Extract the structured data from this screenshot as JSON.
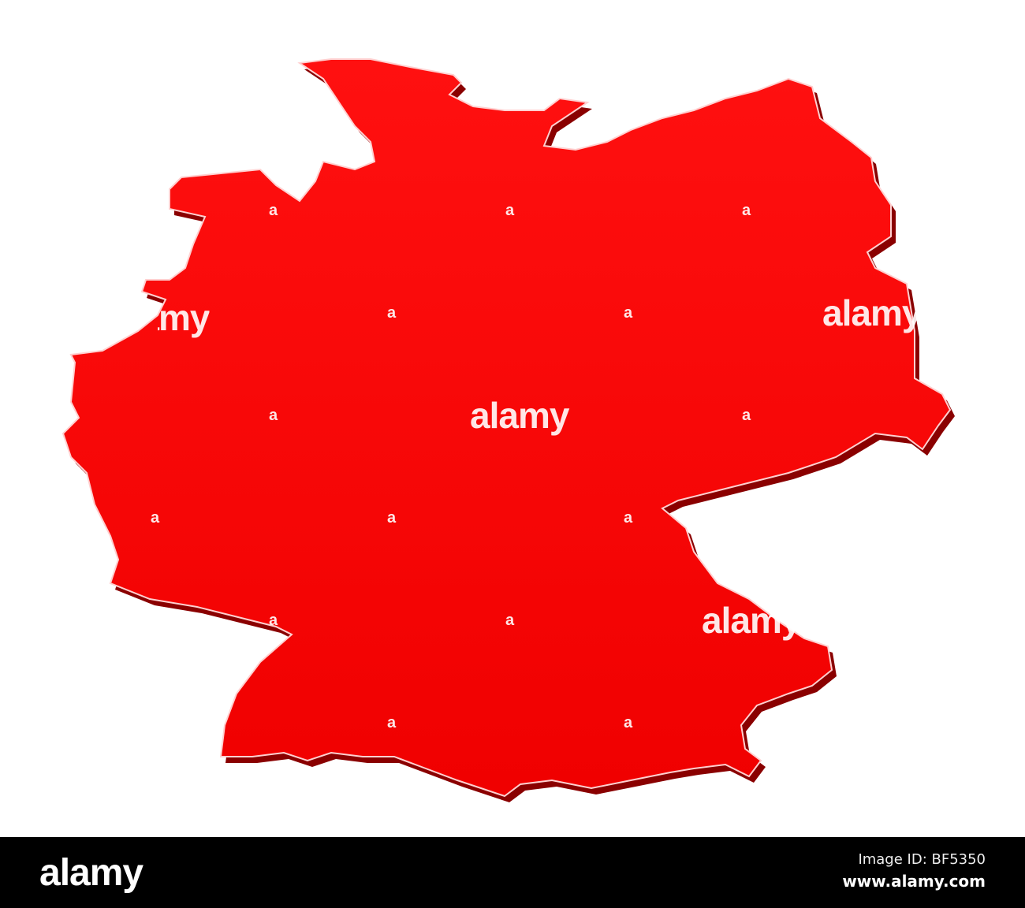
{
  "map": {
    "region": "Germany",
    "fill_color": "#ff0000",
    "shadow_color": "#8a0000",
    "highlight_color": "#ffffff",
    "background_color": "#ffffff"
  },
  "watermark": {
    "large": "alamy",
    "small": "a"
  },
  "footer": {
    "logo": "alamy",
    "image_id": "Image ID: BF5350",
    "url": "www.alamy.com",
    "background_color": "#000000"
  }
}
